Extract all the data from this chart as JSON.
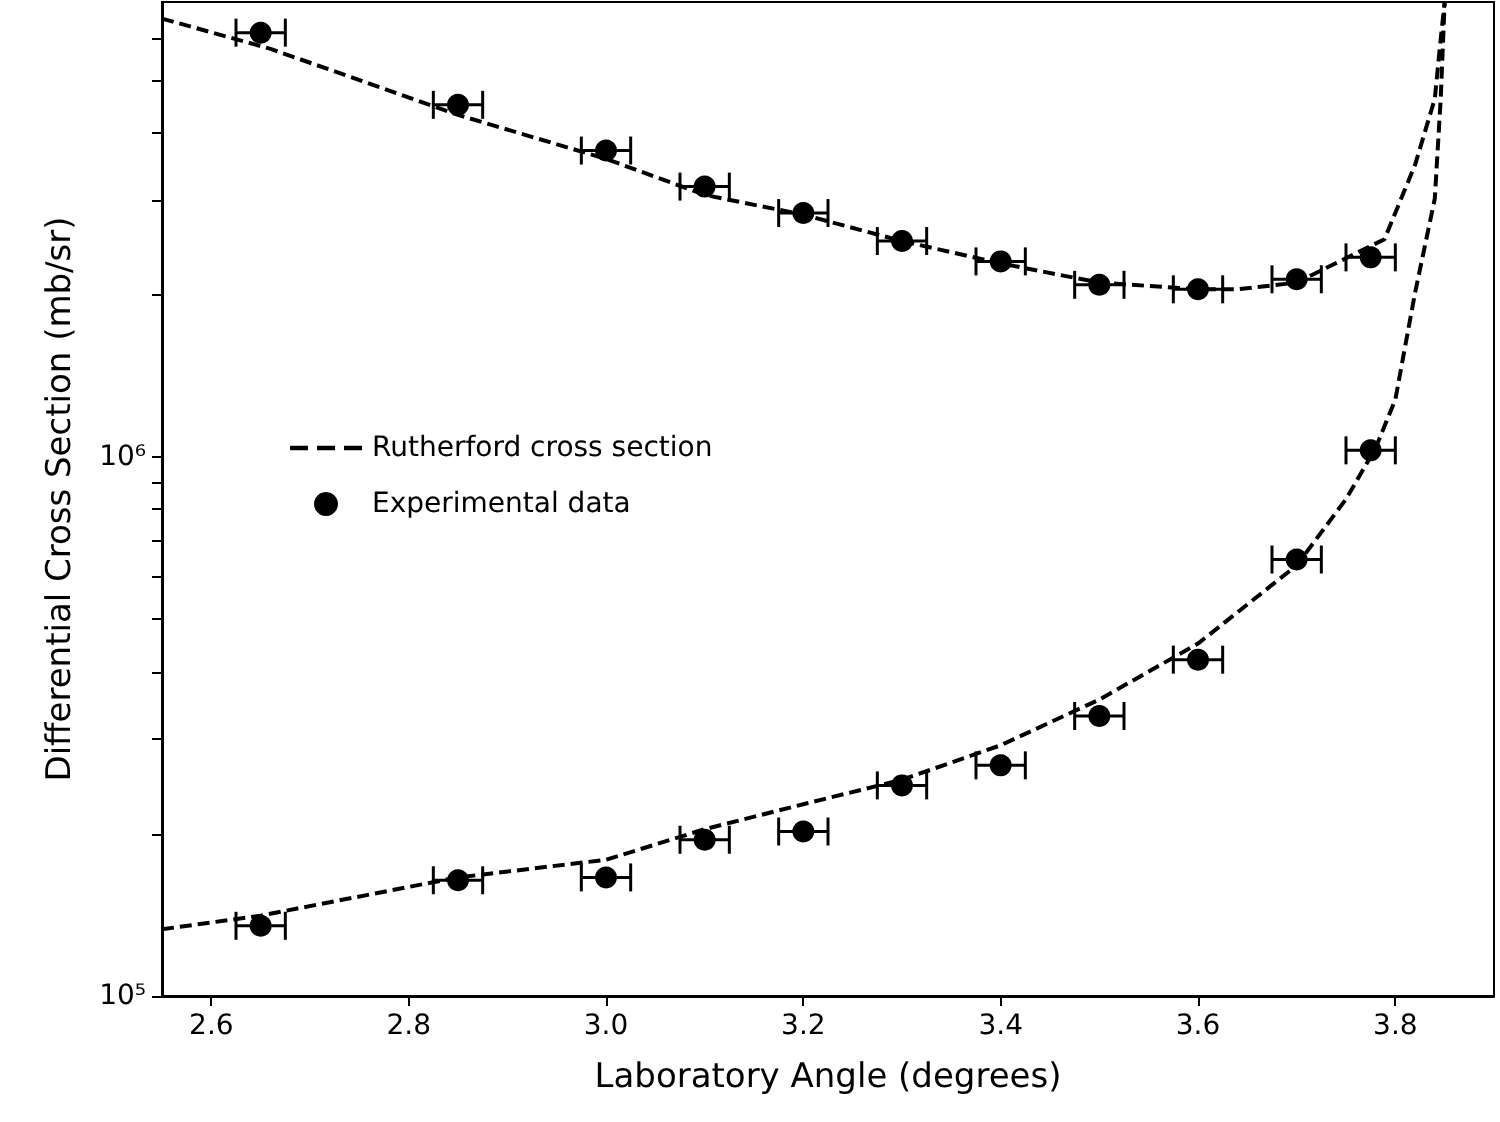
{
  "chart_data": {
    "type": "scatter",
    "xlabel": "Laboratory Angle (degrees)",
    "ylabel": "Differential Cross Section (mb/sr)",
    "xlim": [
      2.55,
      3.9
    ],
    "xticks": [
      {
        "value": 2.6,
        "label": "2.6"
      },
      {
        "value": 2.8,
        "label": "2.8"
      },
      {
        "value": 3.0,
        "label": "3.0"
      },
      {
        "value": 3.2,
        "label": "3.2"
      },
      {
        "value": 3.4,
        "label": "3.4"
      },
      {
        "value": 3.6,
        "label": "3.6"
      },
      {
        "value": 3.8,
        "label": "3.8"
      }
    ],
    "ylim": [
      100000,
      7000000
    ],
    "log": "y",
    "yticks": [
      {
        "value": 100000,
        "label": "10⁵"
      },
      {
        "value": 200000,
        "label": null
      },
      {
        "value": 300000,
        "label": null
      },
      {
        "value": 400000,
        "label": null
      },
      {
        "value": 500000,
        "label": null
      },
      {
        "value": 600000,
        "label": null
      },
      {
        "value": 700000,
        "label": null
      },
      {
        "value": 800000,
        "label": null
      },
      {
        "value": 900000,
        "label": null
      },
      {
        "value": 1000000,
        "label": "10⁶"
      },
      {
        "value": 2000000,
        "label": null
      },
      {
        "value": 3000000,
        "label": null
      },
      {
        "value": 4000000,
        "label": null
      },
      {
        "value": 5000000,
        "label": null
      },
      {
        "value": 6000000,
        "label": null
      }
    ],
    "grid": false,
    "legend": "left",
    "series": [
      {
        "name": "Rutherford cross section",
        "type": "line",
        "line_style": "dashed",
        "marker": "none",
        "color": "#000000",
        "x": [
          2.55,
          2.66,
          2.85,
          3.0,
          3.1,
          3.2,
          3.3,
          3.4,
          3.5,
          3.6,
          3.64,
          3.7,
          3.789,
          3.82,
          3.84,
          3.846,
          3.85
        ],
        "values": [
          6520000,
          5730000,
          4320000,
          3580000,
          3070000,
          2820000,
          2520000,
          2290000,
          2110000,
          2050000,
          2050000,
          2110000,
          2540000,
          3490000,
          4630000,
          5980000,
          7000000
        ]
      },
      {
        "type": "line",
        "line_style": "dashed",
        "marker": "none",
        "color": "#000000",
        "x": [
          2.55,
          2.65,
          2.85,
          3.0,
          3.1,
          3.2,
          3.3,
          3.4,
          3.5,
          3.6,
          3.7,
          3.75,
          3.78,
          3.8,
          3.82,
          3.84,
          3.846,
          3.85
        ],
        "values": [
          133000,
          141000,
          166000,
          179000,
          204000,
          227000,
          252000,
          292000,
          355000,
          451000,
          630000,
          836000,
          1040000,
          1280000,
          2020000,
          3020000,
          4630000,
          7000000
        ]
      },
      {
        "name": "Experimental data",
        "marker": "circle",
        "color": "#000000",
        "x": [
          2.65,
          2.85,
          3.0,
          3.1,
          3.2,
          3.3,
          3.4,
          3.5,
          3.6,
          3.7,
          3.775
        ],
        "values": [
          6140000,
          4510000,
          3710000,
          3180000,
          2840000,
          2520000,
          2310000,
          2090000,
          2050000,
          2140000,
          2350000
        ],
        "xerrors": [
          0.025,
          0.025,
          0.025,
          0.025,
          0.025,
          0.025,
          0.025,
          0.025,
          0.025,
          0.025,
          0.025
        ]
      },
      {
        "marker": "circle",
        "color": "#000000",
        "x": [
          2.65,
          2.85,
          3.0,
          3.1,
          3.2,
          3.3,
          3.4,
          3.5,
          3.6,
          3.7,
          3.775
        ],
        "values": [
          135000,
          164000,
          166000,
          195000,
          202000,
          246000,
          268000,
          331000,
          421000,
          646000,
          1030000
        ],
        "xerrors": [
          0.025,
          0.025,
          0.025,
          0.025,
          0.025,
          0.025,
          0.025,
          0.025,
          0.025,
          0.025,
          0.025
        ]
      }
    ]
  }
}
